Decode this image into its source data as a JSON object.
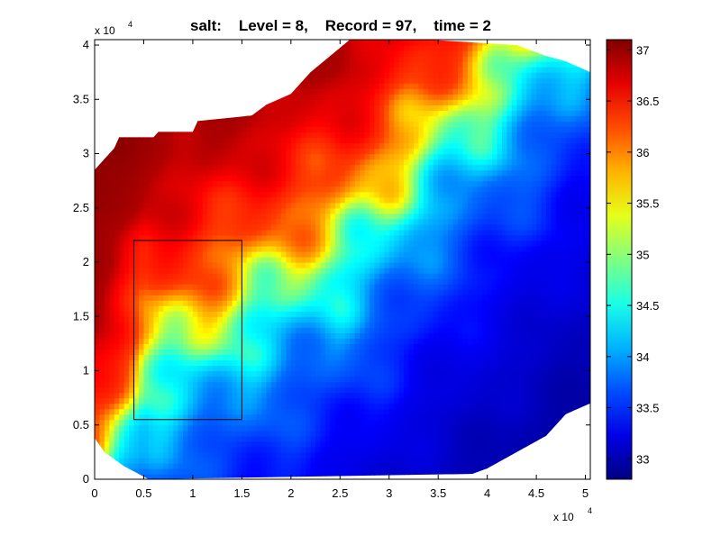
{
  "chart_data": {
    "type": "heatmap",
    "title": "salt:    Level = 8,    Record = 97,    time = 2",
    "xlabel": "",
    "ylabel": "",
    "x_multiplier": {
      "base": "x 10",
      "exponent": "4"
    },
    "y_multiplier": {
      "base": "x 10",
      "exponent": "4"
    },
    "xlim": [
      0,
      5.05
    ],
    "ylim": [
      0,
      4.05
    ],
    "x_ticks": [
      0,
      0.5,
      1,
      1.5,
      2,
      2.5,
      3,
      3.5,
      4,
      4.5,
      5
    ],
    "y_ticks": [
      0,
      0.5,
      1,
      1.5,
      2,
      2.5,
      3,
      3.5,
      4
    ],
    "x_tick_labels": [
      "0",
      "0.5",
      "1",
      "1.5",
      "2",
      "2.5",
      "3",
      "3.5",
      "4",
      "4.5",
      "5"
    ],
    "y_tick_labels": [
      "0",
      "0.5",
      "1",
      "1.5",
      "2",
      "2.5",
      "3",
      "3.5",
      "4"
    ],
    "colorbar": {
      "range": [
        32.8,
        37.1
      ],
      "ticks": [
        33,
        33.5,
        34,
        34.5,
        35,
        35.5,
        36,
        36.5,
        37
      ],
      "tick_labels": [
        "33",
        "33.5",
        "34",
        "34.5",
        "35",
        "35.5",
        "36",
        "36.5",
        "37"
      ],
      "colormap": "jet"
    },
    "domain_outline": [
      [
        0.0,
        0.38
      ],
      [
        0.0,
        2.85
      ],
      [
        0.1,
        2.95
      ],
      [
        0.2,
        3.05
      ],
      [
        0.25,
        3.15
      ],
      [
        0.6,
        3.15
      ],
      [
        0.65,
        3.2
      ],
      [
        1.0,
        3.2
      ],
      [
        1.05,
        3.3
      ],
      [
        1.6,
        3.35
      ],
      [
        1.75,
        3.45
      ],
      [
        2.0,
        3.55
      ],
      [
        2.2,
        3.75
      ],
      [
        2.4,
        3.9
      ],
      [
        2.6,
        4.05
      ],
      [
        3.4,
        4.05
      ],
      [
        4.3,
        4.0
      ],
      [
        4.6,
        3.9
      ],
      [
        4.8,
        3.85
      ],
      [
        5.05,
        3.75
      ],
      [
        5.05,
        0.7
      ],
      [
        4.8,
        0.6
      ],
      [
        4.6,
        0.4
      ],
      [
        4.3,
        0.25
      ],
      [
        4.0,
        0.1
      ],
      [
        3.85,
        0.05
      ],
      [
        0.55,
        0.0
      ],
      [
        0.3,
        0.12
      ],
      [
        0.1,
        0.25
      ]
    ],
    "field_model": {
      "front_distance": [
        [
          0,
          0.0
        ],
        [
          0.5,
          1.3
        ],
        [
          1.0,
          1.55
        ],
        [
          1.5,
          1.85
        ],
        [
          2.0,
          2.15
        ],
        [
          2.5,
          2.4
        ],
        [
          3.0,
          2.9
        ],
        [
          3.5,
          3.4
        ],
        [
          4.0,
          3.85
        ],
        [
          4.5,
          4.3
        ],
        [
          5.05,
          4.8
        ]
      ],
      "values_by_distance": [
        [
          -3.0,
          37.1
        ],
        [
          -1.5,
          36.9
        ],
        [
          -0.4,
          36.3
        ],
        [
          0.0,
          35.7
        ],
        [
          0.3,
          35.0
        ],
        [
          0.6,
          34.4
        ],
        [
          1.2,
          33.8
        ],
        [
          2.2,
          33.3
        ],
        [
          3.5,
          33.05
        ],
        [
          4.5,
          32.9
        ]
      ]
    },
    "highlight_box": {
      "x": [
        0.4,
        1.5
      ],
      "y": [
        0.55,
        2.2
      ]
    }
  }
}
